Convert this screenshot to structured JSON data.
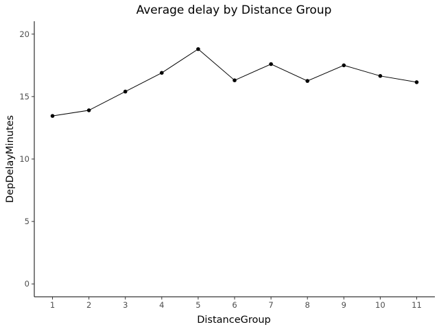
{
  "chart_data": {
    "type": "line",
    "title": "Average delay by Distance Group",
    "xlabel": "DistanceGroup",
    "ylabel": "DepDelayMinutes",
    "x": [
      1,
      2,
      3,
      4,
      5,
      6,
      7,
      8,
      9,
      10,
      11
    ],
    "y": [
      13.45,
      13.9,
      15.4,
      16.9,
      18.8,
      16.3,
      17.6,
      16.25,
      17.5,
      16.65,
      16.15
    ],
    "xticks": [
      "1",
      "2",
      "3",
      "4",
      "5",
      "6",
      "7",
      "8",
      "9",
      "10",
      "11"
    ],
    "yticks": [
      "0",
      "5",
      "10",
      "15",
      "20"
    ],
    "xlim": [
      0.5,
      11.5
    ],
    "ylim": [
      -1.03,
      21.03
    ],
    "markers": true,
    "line_color": "#000000",
    "grid": false,
    "legend": "none"
  }
}
